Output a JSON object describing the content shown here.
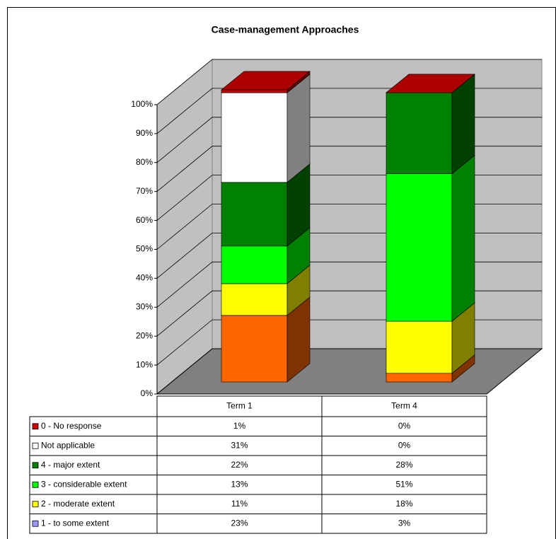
{
  "chart_data": {
    "type": "bar",
    "stacked": true,
    "three_d": true,
    "data_table": true,
    "title": "Case-management Approaches",
    "categories": [
      "Term 1",
      "Term 4"
    ],
    "series": [
      {
        "name": "0 - No response",
        "color": "#cc0000",
        "values": [
          1,
          0
        ],
        "value_labels": [
          "1%",
          "0%"
        ]
      },
      {
        "name": "Not applicable",
        "color": "#ffffff",
        "values": [
          31,
          0
        ],
        "value_labels": [
          "31%",
          "0%"
        ]
      },
      {
        "name": "4 - major extent",
        "color": "#008000",
        "values": [
          22,
          28
        ],
        "value_labels": [
          "22%",
          "28%"
        ]
      },
      {
        "name": "3 - considerable extent",
        "color": "#00ff00",
        "values": [
          13,
          51
        ],
        "value_labels": [
          "13%",
          "51%"
        ]
      },
      {
        "name": "2 - moderate extent",
        "color": "#ffff00",
        "values": [
          11,
          18
        ],
        "value_labels": [
          "11%",
          "18%"
        ]
      },
      {
        "name": "1 - to some extent",
        "color": "#ff6600",
        "key_color": "#9999ff",
        "values": [
          23,
          3
        ],
        "value_labels": [
          "23%",
          "3%"
        ]
      }
    ],
    "ylim": [
      0,
      100
    ],
    "yticks": [
      {
        "value": 0,
        "label": "0%"
      },
      {
        "value": 10,
        "label": "10%"
      },
      {
        "value": 20,
        "label": "20%"
      },
      {
        "value": 30,
        "label": "30%"
      },
      {
        "value": 40,
        "label": "40%"
      },
      {
        "value": 50,
        "label": "50%"
      },
      {
        "value": 60,
        "label": "60%"
      },
      {
        "value": 70,
        "label": "70%"
      },
      {
        "value": 80,
        "label": "80%"
      },
      {
        "value": 90,
        "label": "90%"
      },
      {
        "value": 100,
        "label": "100%"
      }
    ],
    "grid": true
  }
}
